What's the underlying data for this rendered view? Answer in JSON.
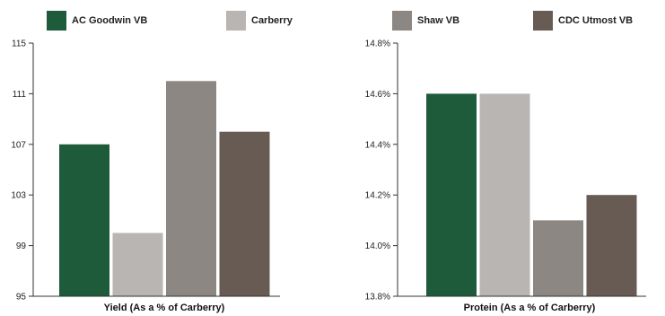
{
  "legend": [
    {
      "label": "AC Goodwin VB",
      "color": "#1e5b3a"
    },
    {
      "label": "Carberry",
      "color": "#b9b5b2"
    },
    {
      "label": "Shaw VB",
      "color": "#8c8782"
    },
    {
      "label": "CDC Utmost VB",
      "color": "#675b54"
    }
  ],
  "chart_data": [
    {
      "type": "bar",
      "categories": [
        "AC Goodwin VB",
        "Carberry",
        "Shaw VB",
        "CDC Utmost VB"
      ],
      "values": [
        107,
        100,
        112,
        108
      ],
      "colors": [
        "#1e5b3a",
        "#b9b5b2",
        "#8c8782",
        "#675b54"
      ],
      "xlabel": "Yield (As a % of Carberry)",
      "ylabel": "",
      "ylim": [
        95,
        115
      ],
      "yticks": [
        "95",
        "99",
        "103",
        "107",
        "111",
        "115"
      ],
      "grid": false,
      "legend_position": "top"
    },
    {
      "type": "bar",
      "categories": [
        "AC Goodwin VB",
        "Carberry",
        "Shaw VB",
        "CDC Utmost VB"
      ],
      "values": [
        14.6,
        14.6,
        14.1,
        14.2
      ],
      "colors": [
        "#1e5b3a",
        "#b9b5b2",
        "#8c8782",
        "#675b54"
      ],
      "xlabel": "Protein (As a % of Carberry)",
      "ylabel": "",
      "ylim": [
        13.8,
        14.8
      ],
      "yticks": [
        "13.8%",
        "14.0%",
        "14.2%",
        "14.4%",
        "14.6%",
        "14.8%"
      ],
      "grid": false,
      "legend_position": "top"
    }
  ]
}
